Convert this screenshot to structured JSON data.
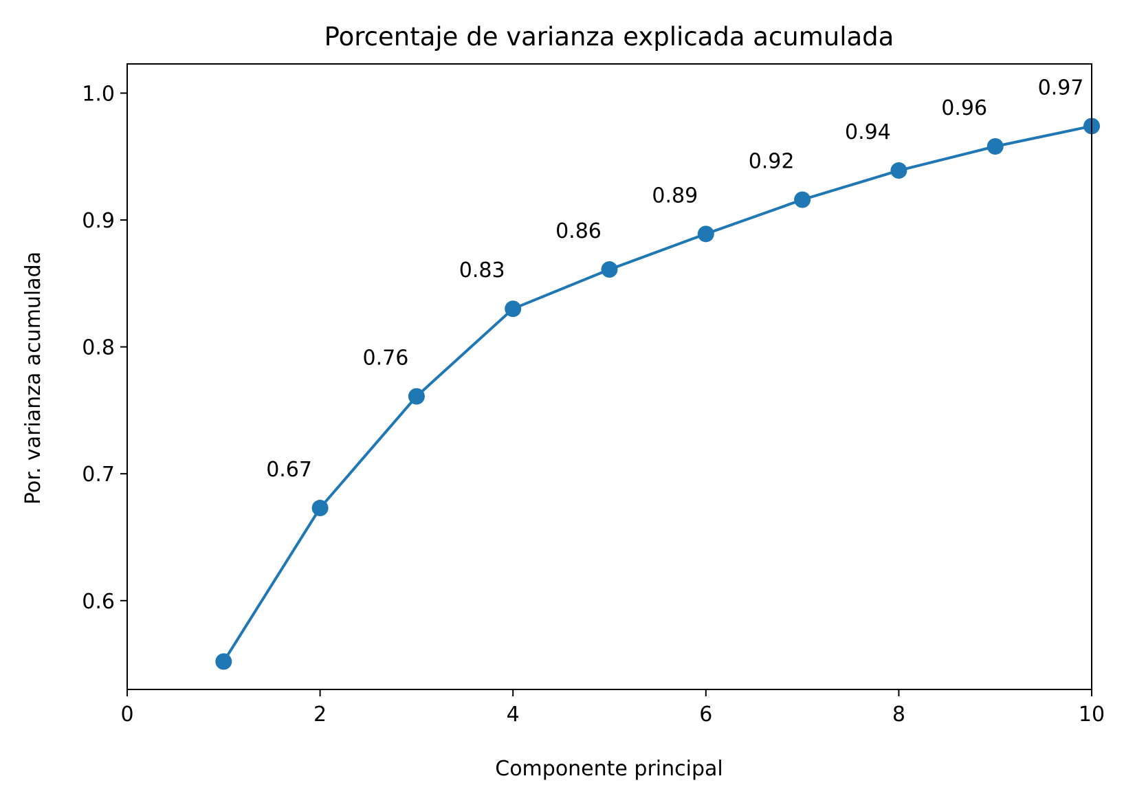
{
  "chart_data": {
    "type": "line",
    "title": "Porcentaje de varianza explicada acumulada",
    "xlabel": "Componente principal",
    "ylabel": "Por. varianza acumulada",
    "xlim": [
      0,
      10
    ],
    "ylim": [
      0.53,
      1.023
    ],
    "xticks": [
      0,
      2,
      4,
      6,
      8,
      10
    ],
    "yticks": [
      0.6,
      0.7,
      0.8,
      0.9,
      1.0
    ],
    "xtick_labels": [
      "0",
      "2",
      "4",
      "6",
      "8",
      "10"
    ],
    "ytick_labels": [
      "0.6",
      "0.7",
      "0.8",
      "0.9",
      "1.0"
    ],
    "grid": false,
    "color": "#1f77b4",
    "series": [
      {
        "x": [
          1,
          2,
          3,
          4,
          5,
          6,
          7,
          8,
          9,
          10
        ],
        "values": [
          0.552,
          0.673,
          0.761,
          0.83,
          0.861,
          0.889,
          0.916,
          0.939,
          0.958,
          0.974
        ],
        "point_labels": [
          "",
          "0.67",
          "0.76",
          "0.83",
          "0.86",
          "0.89",
          "0.92",
          "0.94",
          "0.96",
          "0.97"
        ]
      }
    ]
  }
}
